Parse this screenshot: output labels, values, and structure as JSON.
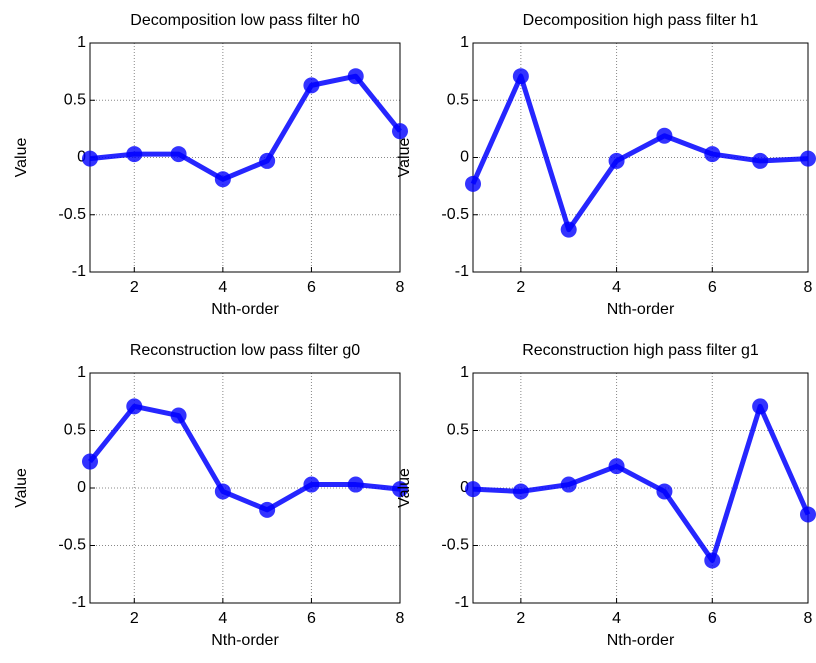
{
  "chart_data": [
    {
      "type": "line",
      "title": "Decomposition low pass filter h0",
      "xlabel": "Nth-order",
      "ylabel": "Value",
      "x": [
        1,
        2,
        3,
        4,
        5,
        6,
        7,
        8
      ],
      "color": "#0000ff",
      "values": [
        -0.01,
        0.03,
        0.03,
        -0.19,
        -0.03,
        0.63,
        0.71,
        0.23
      ],
      "xlim": [
        1,
        8
      ],
      "xticks": [
        2,
        4,
        6,
        8
      ],
      "ylim": [
        -1,
        1
      ],
      "yticks": [
        -1,
        -0.5,
        0,
        0.5,
        1
      ],
      "grid": true
    },
    {
      "type": "line",
      "title": "Decomposition high pass filter h1",
      "xlabel": "Nth-order",
      "ylabel": "Value",
      "x": [
        1,
        2,
        3,
        4,
        5,
        6,
        7,
        8
      ],
      "color": "#0000ff",
      "values": [
        -0.23,
        0.71,
        -0.63,
        -0.03,
        0.19,
        0.03,
        -0.03,
        -0.01
      ],
      "xlim": [
        1,
        8
      ],
      "xticks": [
        2,
        4,
        6,
        8
      ],
      "ylim": [
        -1,
        1
      ],
      "yticks": [
        -1,
        -0.5,
        0,
        0.5,
        1
      ],
      "grid": true
    },
    {
      "type": "line",
      "title": "Reconstruction low pass filter g0",
      "xlabel": "Nth-order",
      "ylabel": "Value",
      "x": [
        1,
        2,
        3,
        4,
        5,
        6,
        7,
        8
      ],
      "color": "#0000ff",
      "values": [
        0.23,
        0.71,
        0.63,
        -0.03,
        -0.19,
        0.03,
        0.03,
        -0.01
      ],
      "xlim": [
        1,
        8
      ],
      "xticks": [
        2,
        4,
        6,
        8
      ],
      "ylim": [
        -1,
        1
      ],
      "yticks": [
        -1,
        -0.5,
        0,
        0.5,
        1
      ],
      "grid": true
    },
    {
      "type": "line",
      "title": "Reconstruction high pass filter g1",
      "xlabel": "Nth-order",
      "ylabel": "Value",
      "x": [
        1,
        2,
        3,
        4,
        5,
        6,
        7,
        8
      ],
      "color": "#0000ff",
      "values": [
        -0.01,
        -0.03,
        0.03,
        0.19,
        -0.03,
        -0.63,
        0.71,
        -0.23
      ],
      "xlim": [
        1,
        8
      ],
      "xticks": [
        2,
        4,
        6,
        8
      ],
      "ylim": [
        -1,
        1
      ],
      "yticks": [
        -1,
        -0.5,
        0,
        0.5,
        1
      ],
      "grid": true
    }
  ]
}
